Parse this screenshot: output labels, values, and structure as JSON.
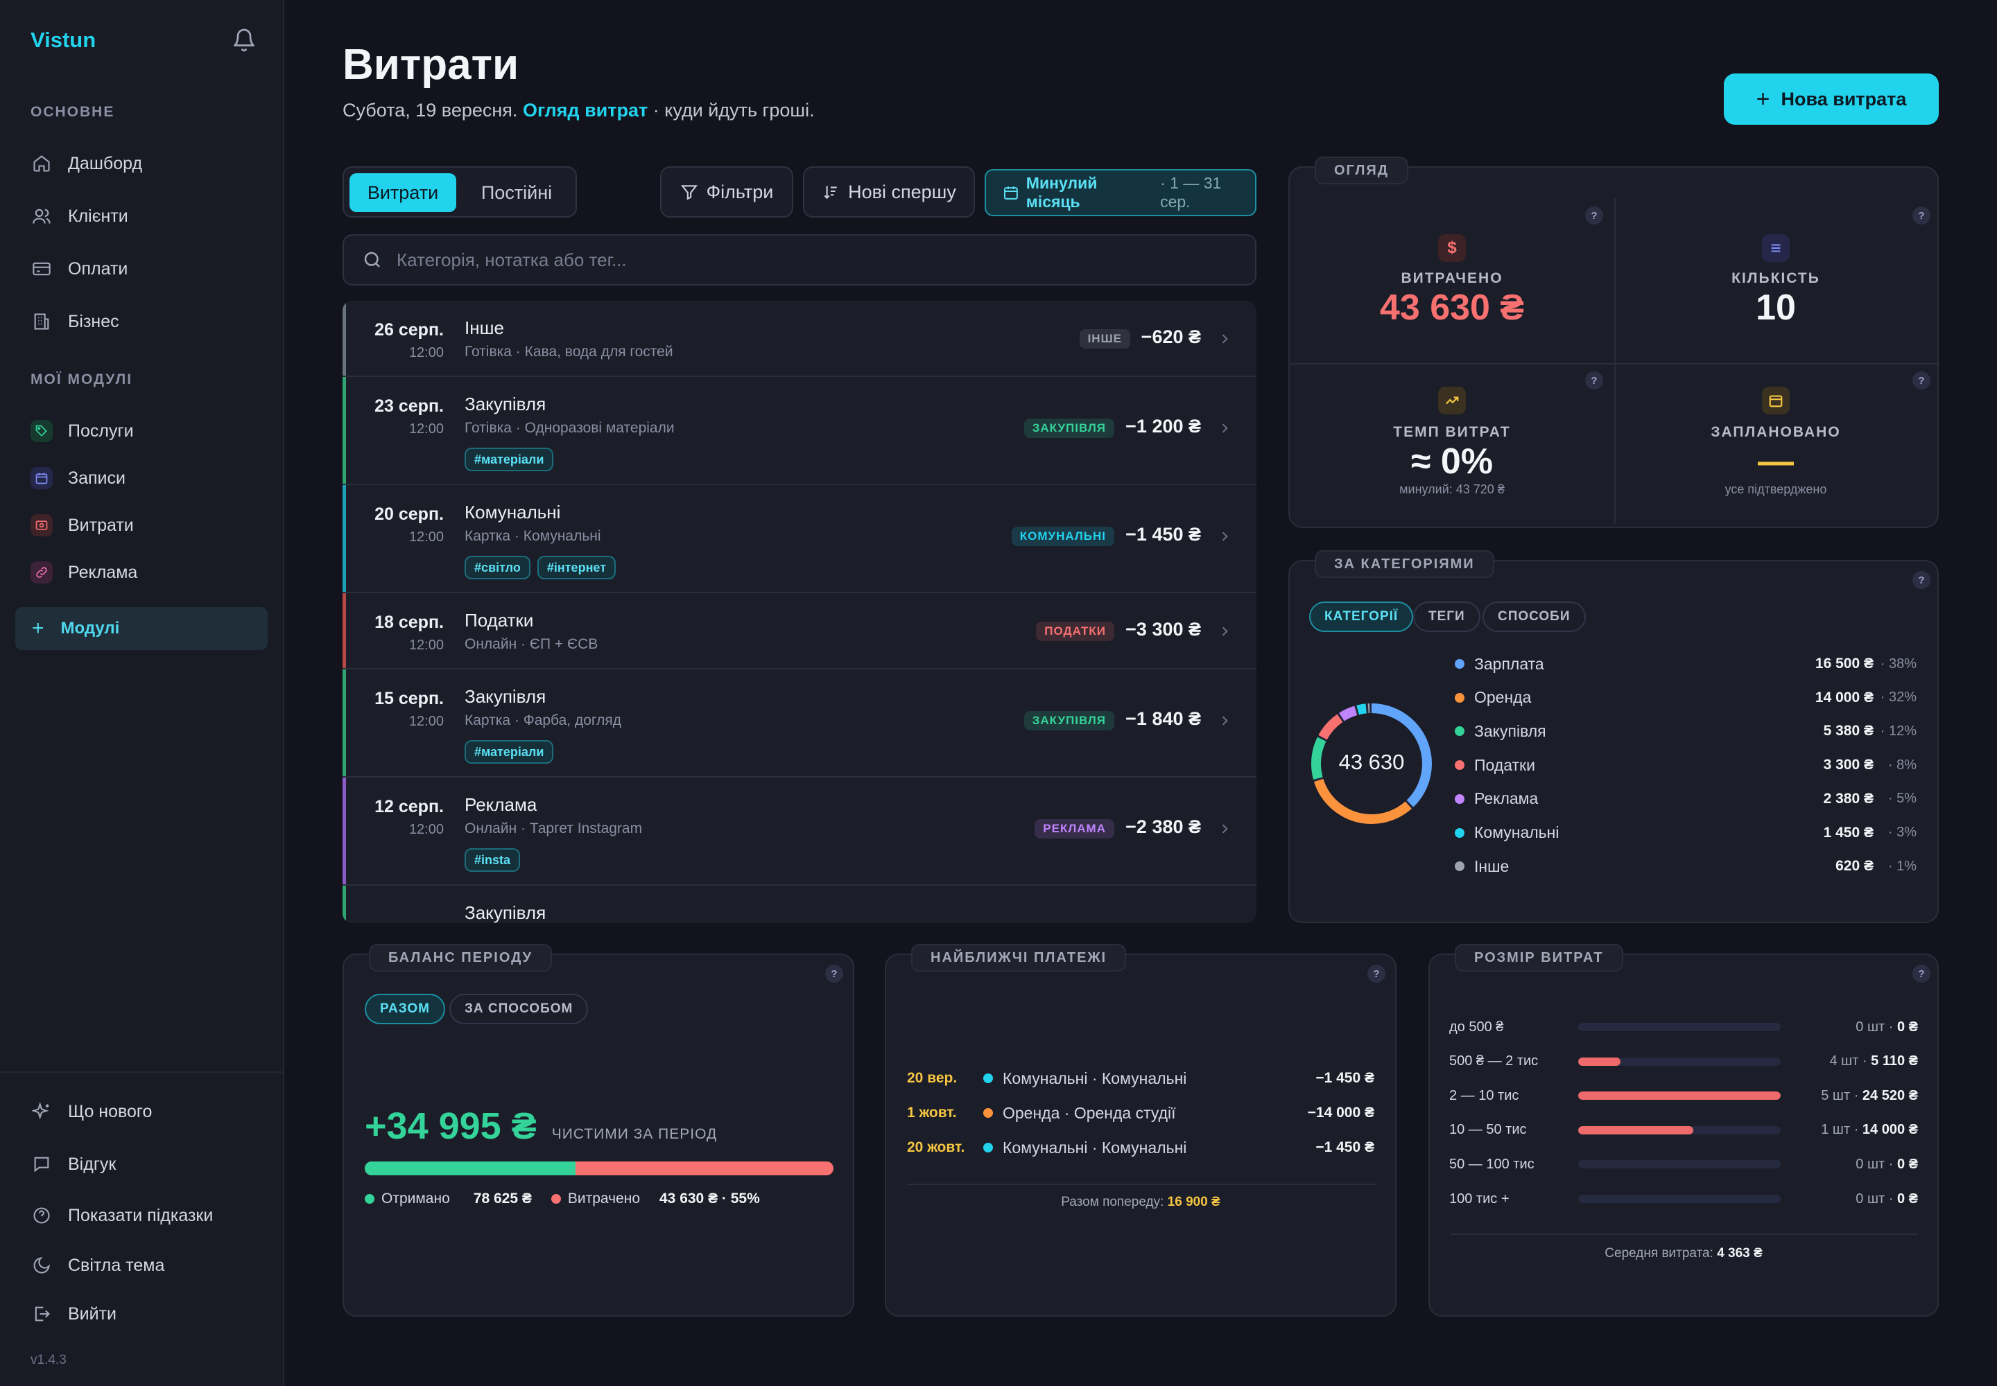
{
  "sidebar": {
    "logo": "Vistun",
    "sections": {
      "main": "ОСНОВНЕ",
      "modules": "МОЇ МОДУЛІ"
    },
    "main_items": [
      {
        "label": "Дашборд",
        "icon": "home-icon"
      },
      {
        "label": "Клієнти",
        "icon": "users-icon"
      },
      {
        "label": "Оплати",
        "icon": "card-icon"
      },
      {
        "label": "Бізнес",
        "icon": "building-icon"
      }
    ],
    "module_items": [
      {
        "label": "Послуги",
        "icon": "tag-icon",
        "color": "#34d399"
      },
      {
        "label": "Записи",
        "icon": "calendar-icon",
        "color": "#818cf8"
      },
      {
        "label": "Витрати",
        "icon": "wallet-icon",
        "color": "#f87171"
      },
      {
        "label": "Реклама",
        "icon": "link-icon",
        "color": "#f472b6"
      }
    ],
    "modules_button": "Модулі",
    "bottom_items": [
      {
        "label": "Що нового",
        "icon": "sparkle-icon"
      },
      {
        "label": "Відгук",
        "icon": "chat-icon"
      },
      {
        "label": "Показати підказки",
        "icon": "help-icon"
      },
      {
        "label": "Світла тема",
        "icon": "moon-icon"
      },
      {
        "label": "Вийти",
        "icon": "logout-icon"
      }
    ],
    "version": "v1.4.3"
  },
  "header": {
    "title": "Витрати",
    "subtitle_date": "Субота, 19 вересня.",
    "subtitle_link": "Огляд витрат",
    "subtitle_rest": " · куди йдуть гроші.",
    "new_button": "Нова витрата"
  },
  "toolbar": {
    "tab_active": "Витрати",
    "tab_other": "Постійні",
    "filters": "Фільтри",
    "sort": "Нові спершу",
    "range_label": "Минулий місяць",
    "range_dates": "· 1 — 31 сер.",
    "search_placeholder": "Категорія, нотатка або тег..."
  },
  "expenses": [
    {
      "date": "26 серп.",
      "time": "12:00",
      "title": "Інше",
      "sub": "Готівка · Кава, вода для гостей",
      "tags": [],
      "badge": "ІНШЕ",
      "badge_color": "#9ca3af",
      "amount": "−620 ₴",
      "bar_color": "#6b7280"
    },
    {
      "date": "23 серп.",
      "time": "12:00",
      "title": "Закупівля",
      "sub": "Готівка · Одноразові матеріали",
      "tags": [
        "#матеріали"
      ],
      "badge": "ЗАКУПІВЛЯ",
      "badge_color": "#34d399",
      "amount": "−1 200 ₴",
      "bar_color": "#2fa56f"
    },
    {
      "date": "20 серп.",
      "time": "12:00",
      "title": "Комунальні",
      "sub": "Картка · Комунальні",
      "tags": [
        "#світло",
        "#інтернет"
      ],
      "badge": "КОМУНАЛЬНІ",
      "badge_color": "#22d3ee",
      "amount": "−1 450 ₴",
      "bar_color": "#1f9fb5"
    },
    {
      "date": "18 серп.",
      "time": "12:00",
      "title": "Податки",
      "sub": "Онлайн · ЄП + ЄСВ",
      "tags": [],
      "badge": "ПОДАТКИ",
      "badge_color": "#f87171",
      "amount": "−3 300 ₴",
      "bar_color": "#b54747"
    },
    {
      "date": "15 серп.",
      "time": "12:00",
      "title": "Закупівля",
      "sub": "Картка · Фарба, догляд",
      "tags": [
        "#матеріали"
      ],
      "badge": "ЗАКУПІВЛЯ",
      "badge_color": "#34d399",
      "amount": "−1 840 ₴",
      "bar_color": "#2fa56f"
    },
    {
      "date": "12 серп.",
      "time": "12:00",
      "title": "Реклама",
      "sub": "Онлайн · Таргет Instagram",
      "tags": [
        "#insta"
      ],
      "badge": "РЕКЛАМА",
      "badge_color": "#c084fc",
      "amount": "−2 380 ₴",
      "bar_color": "#8b5cc8"
    },
    {
      "date": "",
      "time": "",
      "title": "Закупівля",
      "sub": "",
      "tags": [],
      "badge": "",
      "badge_color": "#34d399",
      "amount": "",
      "bar_color": "#2fa56f"
    }
  ],
  "overview": {
    "label": "ОГЛЯД",
    "spent": {
      "label": "ВИТРАЧЕНО",
      "value": "43 630 ₴",
      "icon": "dollar-icon"
    },
    "count": {
      "label": "КІЛЬКІСТЬ",
      "value": "10",
      "icon": "list-icon"
    },
    "pace": {
      "label": "ТЕМП ВИТРАТ",
      "value": "≈ 0%",
      "sub": "минулий: 43 720 ₴",
      "icon": "trend-icon"
    },
    "planned": {
      "label": "ЗАПЛАНОВАНО",
      "value": "—",
      "sub": "усе підтверджено",
      "icon": "calendar-icon"
    }
  },
  "categories": {
    "label": "ЗА КАТЕГОРІЯМИ",
    "chips": [
      "КАТЕГОРІЇ",
      "ТЕГИ",
      "СПОСОБИ"
    ],
    "total": "43 630",
    "items": [
      {
        "name": "Зарплата",
        "value": "16 500 ₴",
        "pct": "· 38%",
        "share": 38,
        "color": "#60a5fa"
      },
      {
        "name": "Оренда",
        "value": "14 000 ₴",
        "pct": "· 32%",
        "share": 32,
        "color": "#fb923c"
      },
      {
        "name": "Закупівля",
        "value": "5 380 ₴",
        "pct": "· 12%",
        "share": 12,
        "color": "#34d399"
      },
      {
        "name": "Податки",
        "value": "3 300 ₴",
        "pct": "· 8%",
        "share": 8,
        "color": "#f87171"
      },
      {
        "name": "Реклама",
        "value": "2 380 ₴",
        "pct": "· 5%",
        "share": 5,
        "color": "#c084fc"
      },
      {
        "name": "Комунальні",
        "value": "1 450 ₴",
        "pct": "· 3%",
        "share": 3,
        "color": "#22d3ee"
      },
      {
        "name": "Інше",
        "value": "620 ₴",
        "pct": "· 1%",
        "share": 1,
        "color": "#9ca3af"
      }
    ]
  },
  "balance": {
    "label": "БАЛАНС ПЕРІОДУ",
    "chips": [
      "РАЗОМ",
      "ЗА СПОСОБОМ"
    ],
    "value": "+34 995 ₴",
    "caption": "ЧИСТИМИ ЗА ПЕРІОД",
    "received_label": "Отримано",
    "received": "78 625 ₴",
    "spent_label": "Витрачено",
    "spent": "43 630 ₴ · 55%",
    "received_share": 0.45
  },
  "upcoming": {
    "label": "НАЙБЛИЖЧІ ПЛАТЕЖІ",
    "items": [
      {
        "date": "20 вер.",
        "name": "Комунальні · Комунальні",
        "amount": "−1 450 ₴",
        "color": "#22d3ee"
      },
      {
        "date": "1 жовт.",
        "name": "Оренда · Оренда студії",
        "amount": "−14 000 ₴",
        "color": "#fb923c"
      },
      {
        "date": "20 жовт.",
        "name": "Комунальні · Комунальні",
        "amount": "−1 450 ₴",
        "color": "#22d3ee"
      }
    ],
    "total_label": "Разом попереду:",
    "total": "16 900 ₴"
  },
  "sizes": {
    "label": "РОЗМІР ВИТРАТ",
    "rows": [
      {
        "range": "до 500 ₴",
        "count": "0 шт ·",
        "sum": "0 ₴",
        "fill": 0
      },
      {
        "range": "500 ₴ — 2 тис",
        "count": "4 шт ·",
        "sum": "5 110 ₴",
        "fill": 0.21
      },
      {
        "range": "2 — 10 тис",
        "count": "5 шт ·",
        "sum": "24 520 ₴",
        "fill": 1
      },
      {
        "range": "10 — 50 тис",
        "count": "1 шт ·",
        "sum": "14 000 ₴",
        "fill": 0.57
      },
      {
        "range": "50 — 100 тис",
        "count": "0 шт ·",
        "sum": "0 ₴",
        "fill": 0
      },
      {
        "range": "100 тис +",
        "count": "0 шт ·",
        "sum": "0 ₴",
        "fill": 0
      }
    ],
    "avg_label": "Середня витрата:",
    "avg": "4 363 ₴"
  },
  "colors": {
    "accent": "#22d3ee",
    "danger": "#f87171",
    "success": "#34d399",
    "warning": "#f5c542"
  }
}
